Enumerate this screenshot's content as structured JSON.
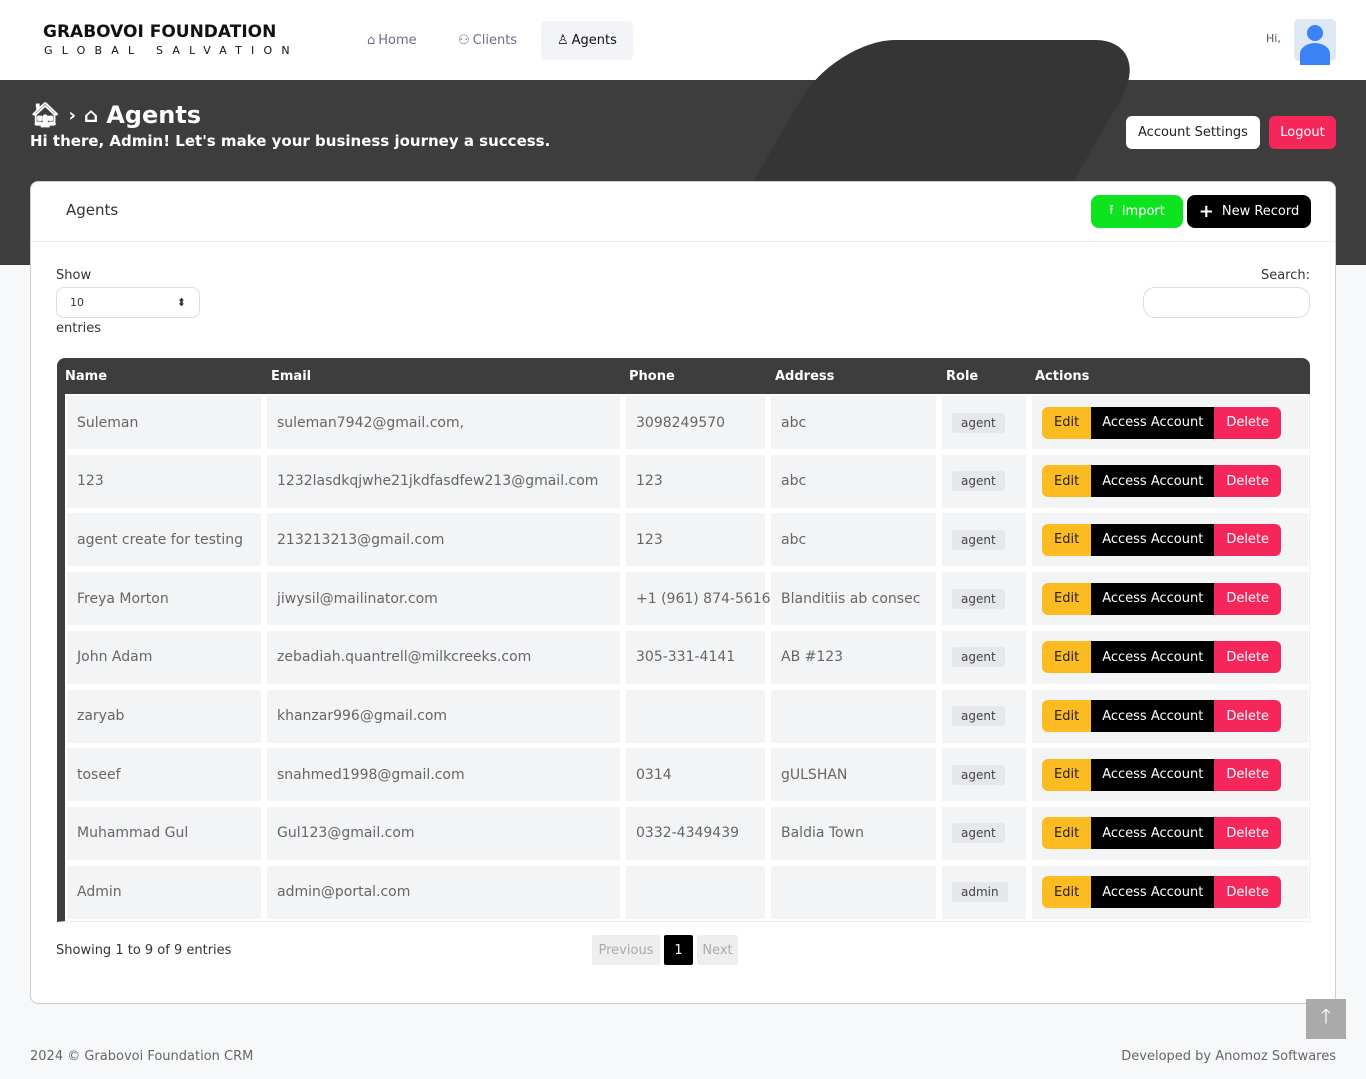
{
  "brand": {
    "name": "GRABOVOI FOUNDATION",
    "tagline": "GLOBAL SALVATION"
  },
  "nav": [
    {
      "label": "Home",
      "icon": "home-icon"
    },
    {
      "label": "Clients",
      "icon": "users-icon"
    },
    {
      "label": "Agents",
      "icon": "user-icon",
      "active": true
    }
  ],
  "user": {
    "greeting": "Hi,"
  },
  "header": {
    "breadcrumb_current": "Agents",
    "subtitle": "Hi there, Admin! Let's make your business journey a success.",
    "account_settings": "Account Settings",
    "logout": "Logout"
  },
  "card": {
    "title": "Agents",
    "import": "Import",
    "new_record": "New Record"
  },
  "table_controls": {
    "show": "Show",
    "page_length": "10",
    "entries": "entries",
    "search_label": "Search:",
    "search_value": ""
  },
  "columns": [
    "Name",
    "Email",
    "Phone",
    "Address",
    "Role",
    "Actions"
  ],
  "actions": {
    "edit": "Edit",
    "access": "Access Account",
    "delete": "Delete"
  },
  "rows": [
    {
      "name": "Suleman",
      "email": "suleman7942@gmail.com,",
      "phone": "3098249570",
      "address": "abc",
      "role": "agent"
    },
    {
      "name": "123",
      "email": "1232lasdkqjwhe21jkdfasdfew213@gmail.com",
      "phone": "123",
      "address": "abc",
      "role": "agent"
    },
    {
      "name": "agent create for testing",
      "email": "213213213@gmail.com",
      "phone": "123",
      "address": "abc",
      "role": "agent"
    },
    {
      "name": "Freya Morton",
      "email": "jiwysil@mailinator.com",
      "phone": "+1 (961) 874-5616",
      "address": "Blanditiis ab consec",
      "role": "agent"
    },
    {
      "name": "John Adam",
      "email": "zebadiah.quantrell@milkcreeks.com",
      "phone": "305-331-4141",
      "address": "AB #123",
      "role": "agent"
    },
    {
      "name": "zaryab",
      "email": "khanzar996@gmail.com",
      "phone": "",
      "address": "",
      "role": "agent"
    },
    {
      "name": "toseef",
      "email": "snahmed1998@gmail.com",
      "phone": "0314",
      "address": "gULSHAN",
      "role": "agent"
    },
    {
      "name": "Muhammad Gul",
      "email": "Gul123@gmail.com",
      "phone": "0332-4349439",
      "address": "Baldia Town",
      "role": "agent"
    },
    {
      "name": "Admin",
      "email": "admin@portal.com",
      "phone": "",
      "address": "",
      "role": "admin"
    }
  ],
  "pagination": {
    "info": "Showing 1 to 9 of 9 entries",
    "previous": "Previous",
    "current": "1",
    "next": "Next"
  },
  "footer": {
    "left": "2024  © Grabovoi Foundation CRM",
    "right": "Developed by Anomoz Softwares"
  }
}
